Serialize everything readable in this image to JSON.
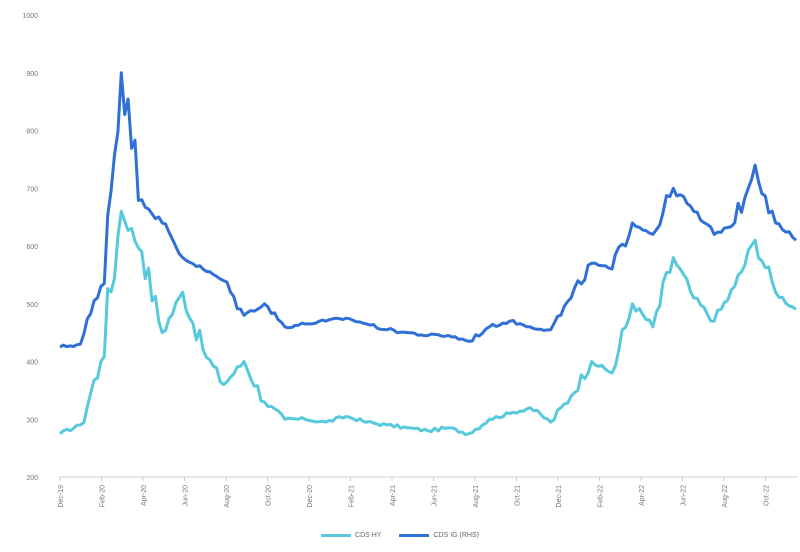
{
  "chart_data": {
    "type": "line",
    "title": "",
    "xlabel": "",
    "ylabel": "",
    "ylim": [
      200,
      1000
    ],
    "yticks": [
      200,
      300,
      400,
      500,
      600,
      700,
      800,
      900,
      1000
    ],
    "xtick_labels": [
      "Dec-19",
      "Feb-20",
      "Apr-20",
      "Jun-20",
      "Aug-20",
      "Oct-20",
      "Dec-20",
      "Feb-21",
      "Apr-21",
      "Jun-21",
      "Aug-21",
      "Oct-21",
      "Dec-21",
      "Feb-22",
      "Apr-22",
      "Jun-22",
      "Aug-22",
      "Oct-22"
    ],
    "legend_position": "bottom-center",
    "grid": false,
    "series": [
      {
        "name": "CDS HY",
        "color": "#56C9DD",
        "x": [
          "Dec-19",
          "Jan-20",
          "Feb-20",
          "Mar-20",
          "Apr-20",
          "May-20",
          "Jun-20",
          "Jul-20",
          "Aug-20",
          "Sep-20",
          "Oct-20",
          "Nov-20",
          "Dec-20",
          "Jan-21",
          "Feb-21",
          "Mar-21",
          "Apr-21",
          "May-21",
          "Jun-21",
          "Jul-21",
          "Aug-21",
          "Sep-21",
          "Oct-21",
          "Nov-21",
          "Dec-21",
          "Jan-22",
          "Feb-22",
          "Mar-22",
          "Apr-22",
          "May-22",
          "Jun-22",
          "Jul-22",
          "Aug-22",
          "Sep-22",
          "Oct-22",
          "Nov-22",
          "Dec-22"
        ],
        "values": [
          275,
          290,
          400,
          660,
          590,
          450,
          520,
          420,
          360,
          400,
          330,
          300,
          300,
          295,
          305,
          295,
          290,
          285,
          280,
          285,
          275,
          300,
          310,
          320,
          295,
          340,
          400,
          380,
          500,
          460,
          580,
          510,
          470,
          530,
          610,
          520,
          490
        ]
      },
      {
        "name": "CDS IG (RHS)",
        "color": "#2F6FD6",
        "x": [
          "Dec-19",
          "Jan-20",
          "Feb-20",
          "Mar-20",
          "Apr-20",
          "May-20",
          "Jun-20",
          "Jul-20",
          "Aug-20",
          "Sep-20",
          "Oct-20",
          "Nov-20",
          "Dec-20",
          "Jan-21",
          "Feb-21",
          "Mar-21",
          "Apr-21",
          "May-21",
          "Jun-21",
          "Jul-21",
          "Aug-21",
          "Sep-21",
          "Oct-21",
          "Nov-21",
          "Dec-21",
          "Jan-22",
          "Feb-22",
          "Mar-22",
          "Apr-22",
          "May-22",
          "Jun-22",
          "Jul-22",
          "Aug-22",
          "Sep-22",
          "Oct-22",
          "Nov-22",
          "Dec-22"
        ],
        "values": [
          425,
          430,
          530,
          900,
          680,
          640,
          580,
          560,
          540,
          480,
          500,
          460,
          465,
          470,
          475,
          465,
          455,
          450,
          445,
          445,
          435,
          460,
          470,
          460,
          455,
          510,
          570,
          560,
          640,
          620,
          700,
          660,
          620,
          640,
          740,
          640,
          610
        ]
      }
    ]
  }
}
